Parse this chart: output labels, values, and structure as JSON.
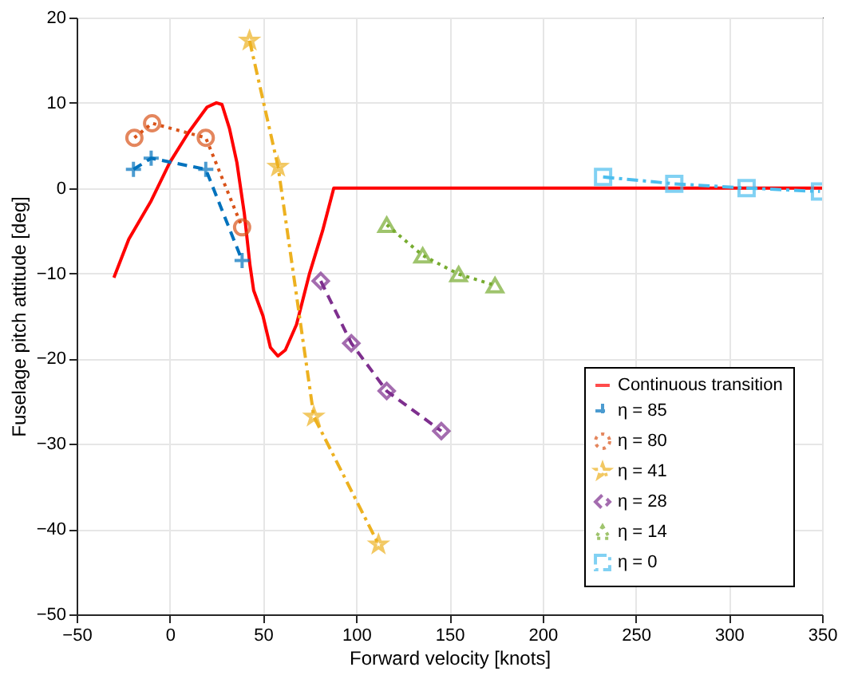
{
  "chart_data": {
    "type": "line",
    "xlabel": "Forward velocity [knots]",
    "ylabel": "Fuselage pitch attitude [deg]",
    "xlim": [
      -50,
      350
    ],
    "xticks": [
      -50,
      0,
      50,
      100,
      150,
      200,
      250,
      300,
      350
    ],
    "ylim": [
      -50,
      20
    ],
    "yticks": [
      -50,
      -40,
      -30,
      -20,
      -10,
      0,
      10,
      20
    ],
    "grid": true,
    "legend": "bottom right",
    "series": [
      {
        "name": "Continuous transition",
        "color": "#ff0000",
        "marker": "none",
        "line_style": "solid",
        "x": [
          -30,
          -22,
          -10,
          0,
          10,
          20,
          25,
          28,
          32,
          36,
          40,
          43,
          45,
          50,
          54,
          58,
          62,
          68,
          75,
          82,
          88,
          350
        ],
        "values": [
          -10.5,
          -6,
          -1.5,
          3,
          6.5,
          9.5,
          10,
          9.8,
          7,
          3,
          -3,
          -9,
          -12,
          -15,
          -18.7,
          -19.7,
          -19,
          -16,
          -10,
          -5,
          0,
          0
        ]
      },
      {
        "name": "η = 85",
        "color": "#0072bd",
        "marker": "cross",
        "line_style": "dashed",
        "x": [
          -19.5,
          -10,
          19.3,
          38.8
        ],
        "values": [
          2.2,
          3.5,
          2.2,
          -8.5
        ]
      },
      {
        "name": "η = 80",
        "color": "#d95319",
        "marker": "circle",
        "line_style": "dotted",
        "x": [
          -19,
          -9.5,
          19.3,
          38.8
        ],
        "values": [
          5.9,
          7.6,
          5.9,
          -4.6
        ]
      },
      {
        "name": "η = 41",
        "color": "#edb120",
        "marker": "star",
        "line_style": "dashdot",
        "x": [
          42.8,
          58.1,
          77.3,
          112
        ],
        "values": [
          17.3,
          2.5,
          -26.8,
          -41.8
        ]
      },
      {
        "name": "η = 28",
        "color": "#7e2f8e",
        "marker": "diamond",
        "line_style": "dashed",
        "x": [
          81,
          97.4,
          116.4,
          145.7
        ],
        "values": [
          -10.9,
          -18.2,
          -23.8,
          -28.5
        ]
      },
      {
        "name": "η = 14",
        "color": "#77ac30",
        "marker": "triangle",
        "line_style": "dotted",
        "x": [
          116.4,
          135.7,
          155,
          174.5
        ],
        "values": [
          -4.3,
          -7.9,
          -10.1,
          -11.4
        ]
      },
      {
        "name": "η = 0",
        "color": "#4dbeee",
        "marker": "square",
        "line_style": "dashdot",
        "x": [
          232.5,
          270.7,
          309.5,
          348.9
        ],
        "values": [
          1.3,
          0.5,
          0,
          -0.4
        ]
      }
    ]
  }
}
